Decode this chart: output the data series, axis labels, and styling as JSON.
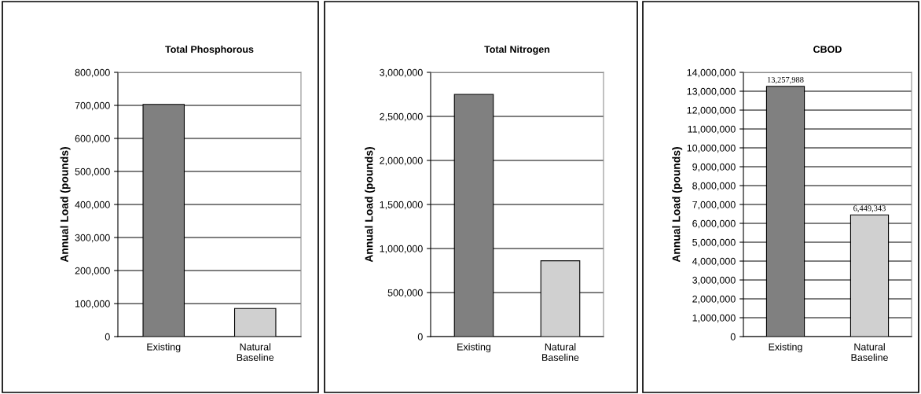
{
  "chart_data": [
    {
      "type": "bar",
      "title": "Total Phosphorous",
      "ylabel": "Annual Load (pounds)",
      "categories": [
        "Existing",
        "Natural\nBaseline"
      ],
      "values": [
        703000,
        85000
      ],
      "colors": [
        "#808080",
        "#d0d0d0"
      ],
      "ylim": [
        0,
        800000
      ],
      "yticks": [
        {
          "value": 0,
          "label": "0"
        },
        {
          "value": 100000,
          "label": "100,000"
        },
        {
          "value": 200000,
          "label": "200,000"
        },
        {
          "value": 300000,
          "label": "300,000"
        },
        {
          "value": 400000,
          "label": "400,000"
        },
        {
          "value": 500000,
          "label": "500,000"
        },
        {
          "value": 600000,
          "label": "600,000"
        },
        {
          "value": 700000,
          "label": "700,000"
        },
        {
          "value": 800000,
          "label": "800,000"
        }
      ],
      "grid": "y"
    },
    {
      "type": "bar",
      "title": "Total Nitrogen",
      "ylabel": "Annual Load (pounds)",
      "categories": [
        "Existing",
        "Natural\nBaseline"
      ],
      "values": [
        2750000,
        860000
      ],
      "colors": [
        "#808080",
        "#d0d0d0"
      ],
      "ylim": [
        0,
        3000000
      ],
      "yticks": [
        {
          "value": 0,
          "label": "0"
        },
        {
          "value": 500000,
          "label": "500,000"
        },
        {
          "value": 1000000,
          "label": "1,000,000"
        },
        {
          "value": 1500000,
          "label": "1,500,000"
        },
        {
          "value": 2000000,
          "label": "2,000,000"
        },
        {
          "value": 2500000,
          "label": "2,500,000"
        },
        {
          "value": 3000000,
          "label": "3,000,000"
        }
      ],
      "grid": "y"
    },
    {
      "type": "bar",
      "title": "CBOD",
      "ylabel": "Annual Load (pounds)",
      "categories": [
        "Existing",
        "Natural\nBaseline"
      ],
      "values": [
        13257988,
        6449343
      ],
      "colors": [
        "#808080",
        "#d0d0d0"
      ],
      "value_labels": [
        "13,257,988",
        "6,449,343"
      ],
      "ylim": [
        0,
        14000000
      ],
      "yticks": [
        {
          "value": 0,
          "label": "0"
        },
        {
          "value": 1000000,
          "label": "1,000,000"
        },
        {
          "value": 2000000,
          "label": "2,000,000"
        },
        {
          "value": 3000000,
          "label": "3,000,000"
        },
        {
          "value": 4000000,
          "label": "4,000,000"
        },
        {
          "value": 5000000,
          "label": "5,000,000"
        },
        {
          "value": 6000000,
          "label": "6,000,000"
        },
        {
          "value": 7000000,
          "label": "7,000,000"
        },
        {
          "value": 8000000,
          "label": "8,000,000"
        },
        {
          "value": 9000000,
          "label": "9,000,000"
        },
        {
          "value": 10000000,
          "label": "10,000,000"
        },
        {
          "value": 11000000,
          "label": "11,000,000"
        },
        {
          "value": 12000000,
          "label": "12,000,000"
        },
        {
          "value": 13000000,
          "label": "13,000,000"
        },
        {
          "value": 14000000,
          "label": "14,000,000"
        }
      ],
      "grid": "y"
    }
  ]
}
